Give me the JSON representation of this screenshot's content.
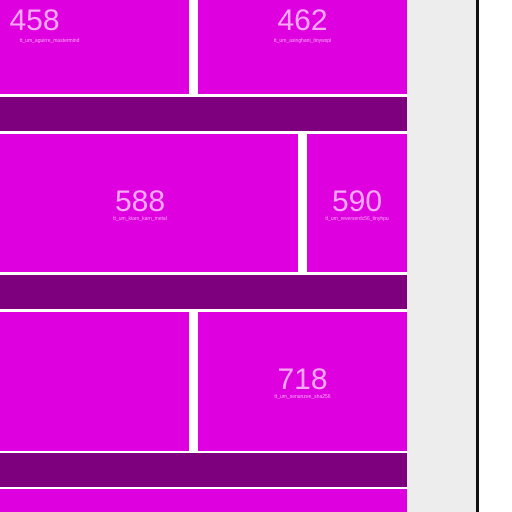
{
  "tiles": [
    {
      "number": "458",
      "label": "tt_um_aguirre_mastermind"
    },
    {
      "number": "462",
      "label": "tt_um_asinghani_tinywspi"
    },
    {
      "number": "588",
      "label": "tt_um_kiarn_karn_metal"
    },
    {
      "number": "590",
      "label": "tt_um_reverserdc56_tinyhpu"
    },
    {
      "number": "",
      "label": ""
    },
    {
      "number": "718",
      "label": "tt_um_senanzee_sha256"
    },
    {
      "number": "",
      "label": ""
    }
  ],
  "colors": {
    "tile": "#df00df",
    "band": "#7f007f",
    "text": "#f7a8f7",
    "sidebar": "#ededed",
    "divider": "#111111"
  }
}
